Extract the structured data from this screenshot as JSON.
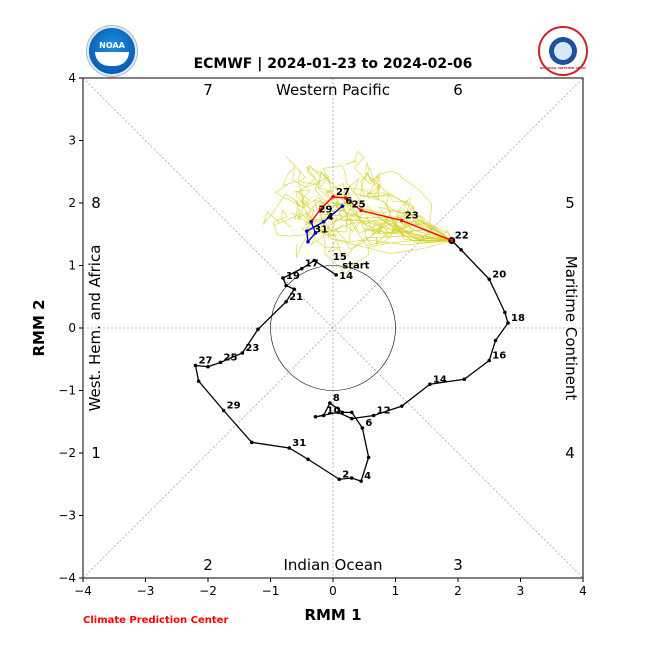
{
  "header": {
    "title": "ECMWF | 2024-01-23 to 2024-02-06",
    "credit": "Climate Prediction Center",
    "left_logo_text": "NOAA",
    "right_logo_text": "NATIONAL WEATHER SERVICE"
  },
  "chart_data": {
    "type": "line",
    "title": "ECMWF | 2024-01-23 to 2024-02-06",
    "xlabel": "RMM 1",
    "ylabel": "RMM 2",
    "xlim": [
      -4,
      4
    ],
    "ylim": [
      -4,
      4
    ],
    "xticks": [
      -4,
      -3,
      -2,
      -1,
      0,
      1,
      2,
      3,
      4
    ],
    "yticks": [
      -4,
      -3,
      -2,
      -1,
      0,
      1,
      2,
      3,
      4
    ],
    "unit_circle_radius": 1,
    "regions": {
      "top": "Western Pacific",
      "bottom": "Indian Ocean",
      "left": "West. Hem. and Africa",
      "right": "Maritime Continent"
    },
    "phases": [
      "1",
      "2",
      "3",
      "4",
      "5",
      "6",
      "7",
      "8"
    ],
    "observed": {
      "color": "#000000",
      "points": [
        [
          0.05,
          0.85
        ],
        [
          -0.3,
          1.08
        ],
        [
          -0.5,
          0.95
        ],
        [
          -0.8,
          0.8
        ],
        [
          -0.75,
          0.68
        ],
        [
          -0.62,
          0.62
        ],
        [
          -0.75,
          0.42
        ],
        [
          -1.2,
          -0.02
        ],
        [
          -1.45,
          -0.4
        ],
        [
          -1.8,
          -0.55
        ],
        [
          -2.0,
          -0.62
        ],
        [
          -2.2,
          -0.6
        ],
        [
          -2.15,
          -0.85
        ],
        [
          -1.75,
          -1.32
        ],
        [
          -1.3,
          -1.83
        ],
        [
          -0.7,
          -1.92
        ],
        [
          -0.4,
          -2.1
        ],
        [
          0.1,
          -2.42
        ],
        [
          0.3,
          -2.4
        ],
        [
          0.45,
          -2.45
        ],
        [
          0.57,
          -2.07
        ],
        [
          0.47,
          -1.6
        ],
        [
          0.3,
          -1.35
        ],
        [
          0.15,
          -1.35
        ],
        [
          -0.05,
          -1.2
        ],
        [
          -0.15,
          -1.4
        ],
        [
          -0.28,
          -1.42
        ],
        [
          0.08,
          -1.35
        ],
        [
          0.3,
          -1.45
        ],
        [
          0.65,
          -1.4
        ],
        [
          1.1,
          -1.25
        ],
        [
          1.55,
          -0.9
        ],
        [
          2.1,
          -0.82
        ],
        [
          2.5,
          -0.52
        ],
        [
          2.6,
          -0.2
        ],
        [
          2.8,
          0.08
        ],
        [
          2.75,
          0.25
        ],
        [
          2.5,
          0.78
        ],
        [
          2.05,
          1.25
        ],
        [
          1.9,
          1.4
        ]
      ],
      "labels": [
        {
          "text": "start",
          "at": [
            0.05,
            0.85
          ],
          "dx": 0.05,
          "dy": 0.07
        },
        {
          "text": "2",
          "at": [
            0.1,
            -2.42
          ],
          "dx": 0.0,
          "dy": 0.0
        },
        {
          "text": "4",
          "at": [
            0.45,
            -2.45
          ],
          "dx": 0.0,
          "dy": 0.0
        },
        {
          "text": "6",
          "at": [
            0.47,
            -1.6
          ],
          "dx": 0.0,
          "dy": 0.0
        },
        {
          "text": "8",
          "at": [
            -0.05,
            -1.2
          ],
          "dx": 0.0,
          "dy": 0.0
        },
        {
          "text": "10",
          "at": [
            -0.15,
            -1.4
          ],
          "dx": 0.0,
          "dy": 0.0
        },
        {
          "text": "12",
          "at": [
            0.65,
            -1.4
          ],
          "dx": 0.0,
          "dy": 0.0
        },
        {
          "text": "14",
          "at": [
            1.55,
            -0.9
          ],
          "dx": 0.0,
          "dy": 0.0
        },
        {
          "text": "14",
          "at": [
            0.05,
            0.85
          ],
          "dx": 0.0,
          "dy": -0.1
        },
        {
          "text": "15",
          "at": [
            -0.3,
            1.08
          ],
          "dx": 0.25,
          "dy": -0.02
        },
        {
          "text": "16",
          "at": [
            2.5,
            -0.52
          ],
          "dx": 0.0,
          "dy": 0.0
        },
        {
          "text": "17",
          "at": [
            -0.5,
            0.95
          ],
          "dx": 0.0,
          "dy": 0.0
        },
        {
          "text": "18",
          "at": [
            2.8,
            0.08
          ],
          "dx": 0.0,
          "dy": 0.0
        },
        {
          "text": "19",
          "at": [
            -0.8,
            0.8
          ],
          "dx": 0.0,
          "dy": -0.05
        },
        {
          "text": "20",
          "at": [
            2.5,
            0.78
          ],
          "dx": 0.0,
          "dy": 0.0
        },
        {
          "text": "21",
          "at": [
            -0.75,
            0.42
          ],
          "dx": 0.0,
          "dy": 0.0
        },
        {
          "text": "22",
          "at": [
            1.9,
            1.4
          ],
          "dx": 0.0,
          "dy": 0.0
        },
        {
          "text": "23",
          "at": [
            -1.45,
            -0.4
          ],
          "dx": 0.0,
          "dy": 0.0
        },
        {
          "text": "25",
          "at": [
            -1.8,
            -0.55
          ],
          "dx": 0.0,
          "dy": 0.0
        },
        {
          "text": "27",
          "at": [
            -2.2,
            -0.6
          ],
          "dx": 0.0,
          "dy": 0.0
        },
        {
          "text": "29",
          "at": [
            -1.75,
            -1.32
          ],
          "dx": 0.0,
          "dy": 0.0
        },
        {
          "text": "31",
          "at": [
            -0.7,
            -1.92
          ],
          "dx": 0.0,
          "dy": 0.0
        }
      ]
    },
    "forecast_mean_red": {
      "color": "#ff0000",
      "points": [
        [
          1.9,
          1.4
        ],
        [
          1.1,
          1.72
        ],
        [
          0.45,
          1.88
        ],
        [
          0.2,
          2.08
        ],
        [
          0.0,
          2.1
        ],
        [
          -0.2,
          1.9
        ],
        [
          -0.35,
          1.7
        ]
      ],
      "labels": [
        {
          "text": "23",
          "at": [
            1.1,
            1.72
          ]
        },
        {
          "text": "25",
          "at": [
            0.25,
            1.9
          ]
        },
        {
          "text": "27",
          "at": [
            0.0,
            2.1
          ]
        }
      ]
    },
    "forecast_mean_blue": {
      "color": "#0000cc",
      "points": [
        [
          -0.35,
          1.7
        ],
        [
          -0.28,
          1.52
        ],
        [
          -0.4,
          1.38
        ],
        [
          -0.42,
          1.55
        ],
        [
          -0.15,
          1.7
        ],
        [
          0.15,
          1.95
        ]
      ],
      "labels": [
        {
          "text": "29",
          "at": [
            -0.28,
            1.82
          ]
        },
        {
          "text": "31",
          "at": [
            -0.35,
            1.5
          ]
        },
        {
          "text": "4",
          "at": [
            -0.15,
            1.7
          ]
        },
        {
          "text": "6",
          "at": [
            0.15,
            1.95
          ]
        }
      ]
    },
    "ensemble_color": "#d4d42a",
    "ensemble_members": 30
  }
}
